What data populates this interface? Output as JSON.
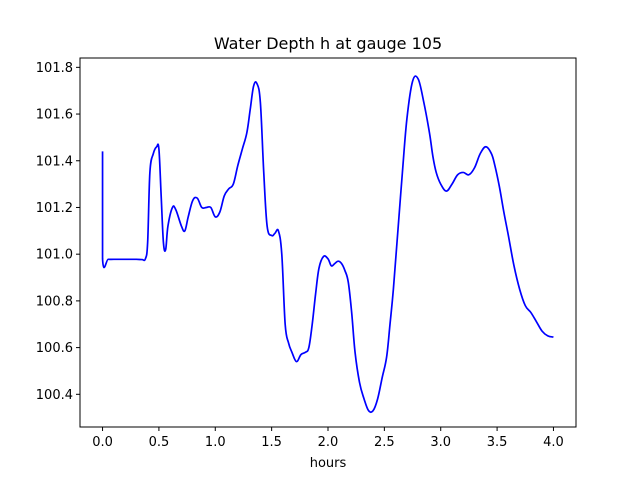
{
  "chart_data": {
    "type": "line",
    "title": "Water Depth h at gauge 105",
    "xlabel": "hours",
    "ylabel": "",
    "xlim": [
      -0.2,
      4.2
    ],
    "ylim": [
      100.26,
      101.84
    ],
    "xticks": [
      0.0,
      0.5,
      1.0,
      1.5,
      2.0,
      2.5,
      3.0,
      3.5,
      4.0
    ],
    "xtick_labels": [
      "0.0",
      "0.5",
      "1.0",
      "1.5",
      "2.0",
      "2.5",
      "3.0",
      "3.5",
      "4.0"
    ],
    "yticks": [
      100.4,
      100.6,
      100.8,
      101.0,
      101.2,
      101.4,
      101.6,
      101.8
    ],
    "ytick_labels": [
      "100.4",
      "100.6",
      "100.8",
      "101.0",
      "101.2",
      "101.4",
      "101.6",
      "101.8"
    ],
    "grid": false,
    "series": [
      {
        "color": "#0000ff",
        "x": [
          0.0,
          0.0,
          0.05,
          0.1,
          0.2,
          0.3,
          0.35,
          0.38,
          0.4,
          0.42,
          0.45,
          0.48,
          0.5,
          0.52,
          0.54,
          0.56,
          0.58,
          0.62,
          0.65,
          0.7,
          0.73,
          0.76,
          0.8,
          0.84,
          0.88,
          0.92,
          0.96,
          1.0,
          1.04,
          1.08,
          1.12,
          1.16,
          1.2,
          1.24,
          1.28,
          1.31,
          1.34,
          1.37,
          1.4,
          1.43,
          1.46,
          1.5,
          1.53,
          1.56,
          1.59,
          1.62,
          1.65,
          1.68,
          1.72,
          1.76,
          1.8,
          1.83,
          1.86,
          1.89,
          1.92,
          1.96,
          2.0,
          2.03,
          2.06,
          2.09,
          2.12,
          2.15,
          2.18,
          2.21,
          2.24,
          2.28,
          2.32,
          2.36,
          2.4,
          2.44,
          2.48,
          2.52,
          2.55,
          2.58,
          2.62,
          2.66,
          2.7,
          2.75,
          2.8,
          2.85,
          2.9,
          2.93,
          2.96,
          3.0,
          3.05,
          3.1,
          3.15,
          3.2,
          3.25,
          3.3,
          3.35,
          3.4,
          3.45,
          3.48,
          3.52,
          3.56,
          3.6,
          3.65,
          3.7,
          3.75,
          3.8,
          3.85,
          3.9,
          3.95,
          4.0
        ],
        "y": [
          101.44,
          100.98,
          100.978,
          100.978,
          100.978,
          100.978,
          100.977,
          100.98,
          101.05,
          101.35,
          101.43,
          101.46,
          101.45,
          101.25,
          101.05,
          101.02,
          101.12,
          101.2,
          101.19,
          101.12,
          101.1,
          101.16,
          101.23,
          101.24,
          101.2,
          101.2,
          101.2,
          101.16,
          101.18,
          101.25,
          101.28,
          101.3,
          101.38,
          101.45,
          101.52,
          101.62,
          101.72,
          101.73,
          101.65,
          101.35,
          101.12,
          101.08,
          101.09,
          101.1,
          101.0,
          100.7,
          100.62,
          100.58,
          100.54,
          100.57,
          100.58,
          100.6,
          100.7,
          100.83,
          100.94,
          100.99,
          100.98,
          100.95,
          100.96,
          100.97,
          100.96,
          100.93,
          100.88,
          100.75,
          100.58,
          100.45,
          100.38,
          100.33,
          100.33,
          100.38,
          100.47,
          100.56,
          100.7,
          100.85,
          101.1,
          101.35,
          101.58,
          101.74,
          101.75,
          101.65,
          101.52,
          101.42,
          101.35,
          101.3,
          101.27,
          101.3,
          101.34,
          101.35,
          101.34,
          101.37,
          101.43,
          101.46,
          101.43,
          101.38,
          101.29,
          101.18,
          101.08,
          100.95,
          100.85,
          100.78,
          100.75,
          100.71,
          100.67,
          100.65,
          100.645
        ]
      }
    ]
  }
}
